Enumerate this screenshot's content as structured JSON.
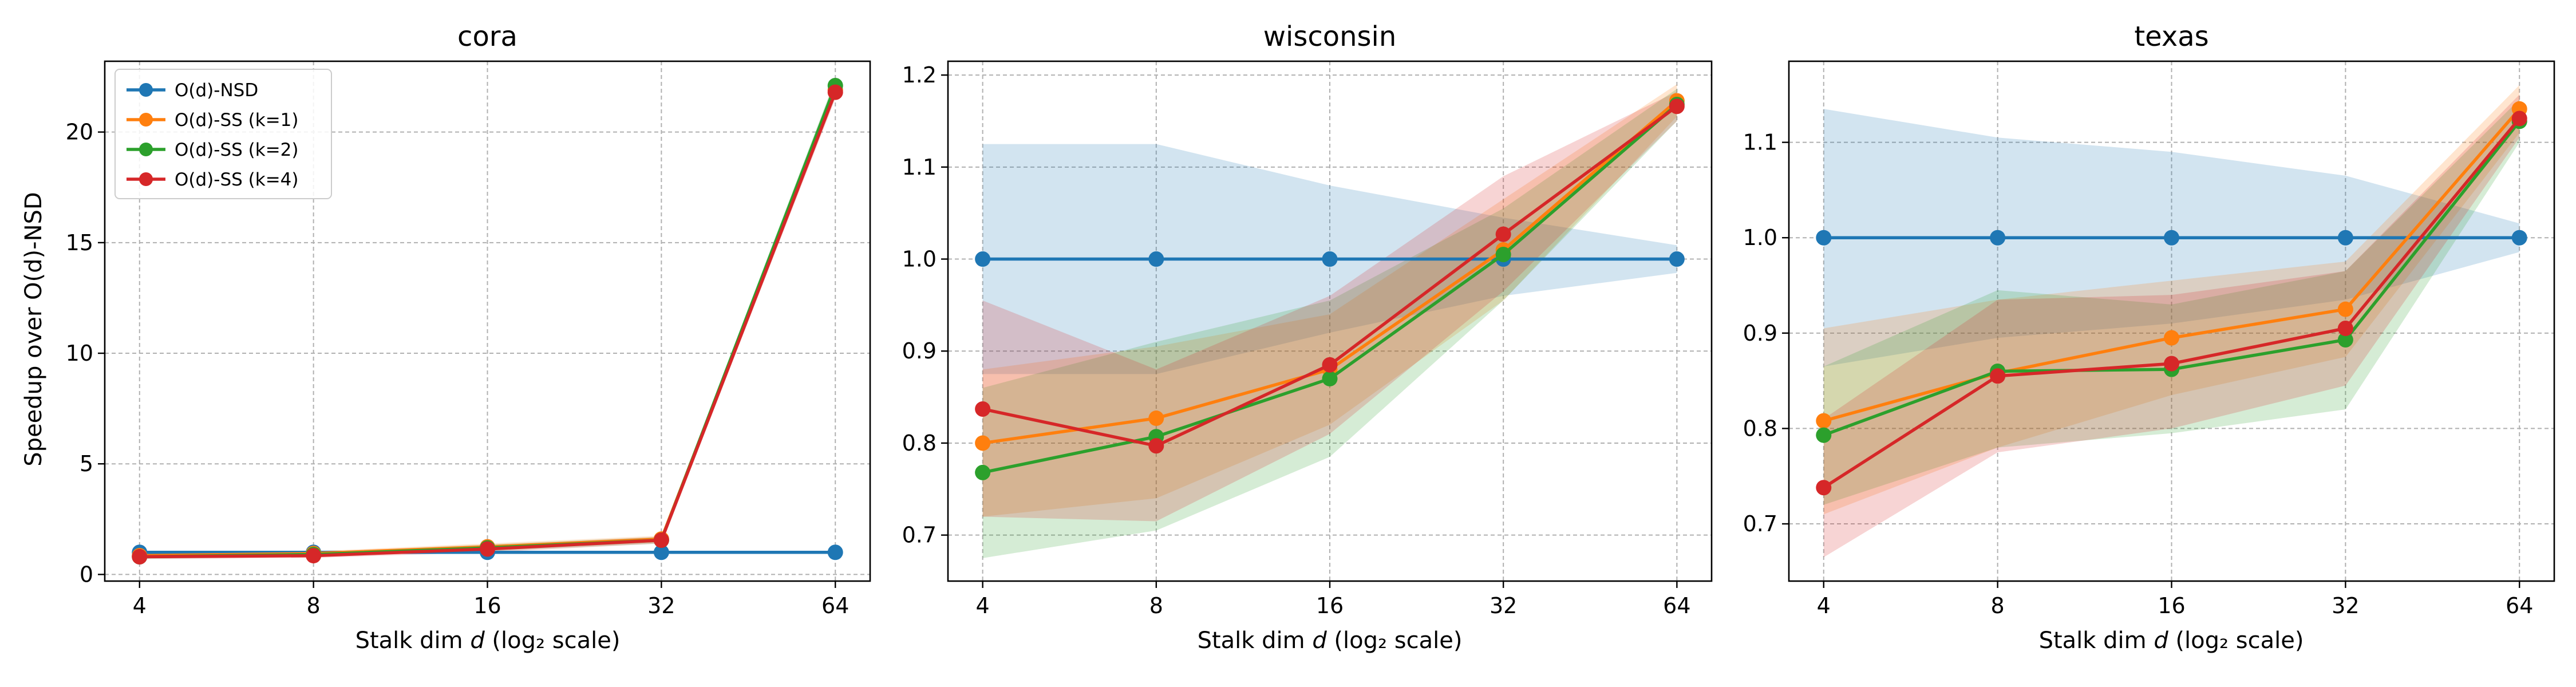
{
  "figure": {
    "ylabel": "Speedup over O(d)-NSD",
    "xlabel_prefix": "Stalk dim ",
    "xlabel_var": "d",
    "xlabel_suffix": " (log₂ scale)"
  },
  "legend": {
    "placement": "upper-left of first panel",
    "entries": [
      {
        "label": "O(d)-NSD",
        "color": "#1f77b4"
      },
      {
        "label": "O(d)-SS (k=1)",
        "color": "#ff7f0e"
      },
      {
        "label": "O(d)-SS (k=2)",
        "color": "#2ca02c"
      },
      {
        "label": "O(d)-SS (k=4)",
        "color": "#d62728"
      }
    ]
  },
  "chart_data": [
    {
      "type": "line",
      "title": "cora",
      "xscale": "log2",
      "x": [
        4,
        8,
        16,
        32,
        64
      ],
      "x_tick_labels": [
        "4",
        "8",
        "16",
        "32",
        "64"
      ],
      "ylim": [
        -0.3,
        23.2
      ],
      "y_ticks": [
        0,
        5,
        10,
        15,
        20
      ],
      "y_tick_labels": [
        "0",
        "5",
        "10",
        "15",
        "20"
      ],
      "grid": true,
      "show_ylabel": true,
      "show_legend": true,
      "series": [
        {
          "name": "O(d)-NSD",
          "color": "#1f77b4",
          "values": [
            1.0,
            1.0,
            1.0,
            1.0,
            1.0
          ]
        },
        {
          "name": "O(d)-SS (k=1)",
          "color": "#ff7f0e",
          "values": [
            0.85,
            0.95,
            1.25,
            1.6,
            21.9
          ],
          "band_lower": [
            0.75,
            0.85,
            1.1,
            1.45,
            21.6
          ],
          "band_upper": [
            0.95,
            1.05,
            1.4,
            1.75,
            22.2
          ]
        },
        {
          "name": "O(d)-SS (k=2)",
          "color": "#2ca02c",
          "values": [
            0.8,
            0.9,
            1.2,
            1.55,
            22.1
          ],
          "band_lower": [
            0.7,
            0.8,
            1.05,
            1.4,
            21.8
          ],
          "band_upper": [
            0.9,
            1.0,
            1.35,
            1.7,
            22.4
          ]
        },
        {
          "name": "O(d)-SS (k=4)",
          "color": "#d62728",
          "values": [
            0.8,
            0.85,
            1.15,
            1.55,
            21.8
          ],
          "band_lower": [
            0.7,
            0.75,
            1.0,
            1.4,
            21.5
          ],
          "band_upper": [
            0.9,
            0.95,
            1.3,
            1.7,
            22.1
          ]
        }
      ]
    },
    {
      "type": "line",
      "title": "wisconsin",
      "xscale": "log2",
      "x": [
        4,
        8,
        16,
        32,
        64
      ],
      "x_tick_labels": [
        "4",
        "8",
        "16",
        "32",
        "64"
      ],
      "ylim": [
        0.65,
        1.215
      ],
      "y_ticks": [
        0.7,
        0.8,
        0.9,
        1.0,
        1.1,
        1.2
      ],
      "y_tick_labels": [
        "0.7",
        "0.8",
        "0.9",
        "1.0",
        "1.1",
        "1.2"
      ],
      "grid": true,
      "show_ylabel": false,
      "show_legend": false,
      "series": [
        {
          "name": "O(d)-NSD",
          "color": "#1f77b4",
          "values": [
            1.0,
            1.0,
            1.0,
            1.0,
            1.0
          ],
          "band_lower": [
            0.875,
            0.875,
            0.92,
            0.96,
            0.985
          ],
          "band_upper": [
            1.125,
            1.125,
            1.08,
            1.045,
            1.015
          ]
        },
        {
          "name": "O(d)-SS (k=1)",
          "color": "#ff7f0e",
          "values": [
            0.8,
            0.827,
            0.88,
            1.01,
            1.172
          ],
          "band_lower": [
            0.72,
            0.74,
            0.82,
            0.955,
            1.155
          ],
          "band_upper": [
            0.88,
            0.905,
            0.94,
            1.065,
            1.19
          ]
        },
        {
          "name": "O(d)-SS (k=2)",
          "color": "#2ca02c",
          "values": [
            0.768,
            0.807,
            0.87,
            1.005,
            1.168
          ],
          "band_lower": [
            0.675,
            0.705,
            0.785,
            0.955,
            1.15
          ],
          "band_upper": [
            0.86,
            0.91,
            0.955,
            1.055,
            1.185
          ]
        },
        {
          "name": "O(d)-SS (k=4)",
          "color": "#d62728",
          "values": [
            0.837,
            0.797,
            0.885,
            1.027,
            1.166
          ],
          "band_lower": [
            0.72,
            0.715,
            0.81,
            0.965,
            1.15
          ],
          "band_upper": [
            0.955,
            0.88,
            0.96,
            1.09,
            1.182
          ]
        }
      ]
    },
    {
      "type": "line",
      "title": "texas",
      "xscale": "log2",
      "x": [
        4,
        8,
        16,
        32,
        64
      ],
      "x_tick_labels": [
        "4",
        "8",
        "16",
        "32",
        "64"
      ],
      "ylim": [
        0.64,
        1.185
      ],
      "y_ticks": [
        0.7,
        0.8,
        0.9,
        1.0,
        1.1
      ],
      "y_tick_labels": [
        "0.7",
        "0.8",
        "0.9",
        "1.0",
        "1.1"
      ],
      "grid": true,
      "show_ylabel": false,
      "show_legend": false,
      "series": [
        {
          "name": "O(d)-NSD",
          "color": "#1f77b4",
          "values": [
            1.0,
            1.0,
            1.0,
            1.0,
            1.0
          ],
          "band_lower": [
            0.865,
            0.895,
            0.91,
            0.935,
            0.985
          ],
          "band_upper": [
            1.135,
            1.105,
            1.09,
            1.065,
            1.015
          ]
        },
        {
          "name": "O(d)-SS (k=1)",
          "color": "#ff7f0e",
          "values": [
            0.808,
            0.858,
            0.895,
            0.925,
            1.135
          ],
          "band_lower": [
            0.71,
            0.78,
            0.835,
            0.875,
            1.11
          ],
          "band_upper": [
            0.905,
            0.935,
            0.955,
            0.975,
            1.16
          ]
        },
        {
          "name": "O(d)-SS (k=2)",
          "color": "#2ca02c",
          "values": [
            0.793,
            0.86,
            0.862,
            0.893,
            1.122
          ],
          "band_lower": [
            0.72,
            0.78,
            0.795,
            0.82,
            1.1
          ],
          "band_upper": [
            0.865,
            0.945,
            0.93,
            0.965,
            1.145
          ]
        },
        {
          "name": "O(d)-SS (k=4)",
          "color": "#d62728",
          "values": [
            0.738,
            0.855,
            0.868,
            0.905,
            1.125
          ],
          "band_lower": [
            0.665,
            0.775,
            0.8,
            0.845,
            1.105
          ],
          "band_upper": [
            0.81,
            0.935,
            0.94,
            0.965,
            1.15
          ]
        }
      ]
    }
  ]
}
